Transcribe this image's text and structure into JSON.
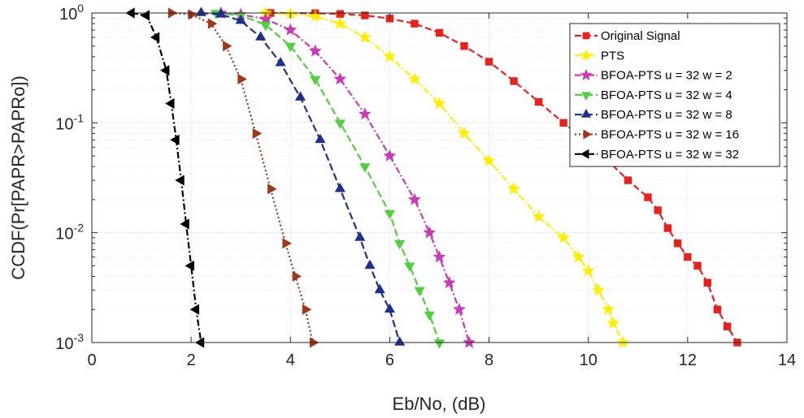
{
  "chart_data": {
    "type": "line",
    "title": "",
    "xlabel": "Eb/No, (dB)",
    "ylabel": "CCDF(Pr[PAPR>PAPRo])",
    "xlim": [
      0,
      14
    ],
    "ylim": [
      0.001,
      1
    ],
    "yscale": "log",
    "grid": true,
    "legend_position": "top-right",
    "x_ticks": [
      "0",
      "2",
      "4",
      "6",
      "8",
      "10",
      "12",
      "14"
    ],
    "y_ticks": [
      {
        "base": "10",
        "exp": "0"
      },
      {
        "base": "10",
        "exp": "-1"
      },
      {
        "base": "10",
        "exp": "-2"
      },
      {
        "base": "10",
        "exp": "-3"
      }
    ],
    "series": [
      {
        "name": "Original Signal",
        "color": "#e8211c",
        "marker": "square",
        "dash": "8,4",
        "x": [
          3.6,
          4.5,
          5.0,
          5.5,
          6.0,
          6.5,
          7.0,
          7.5,
          8.0,
          8.5,
          9.0,
          9.5,
          10.0,
          10.4,
          10.8,
          11.2,
          11.4,
          11.6,
          11.8,
          12.0,
          12.2,
          12.4,
          12.6,
          12.8,
          13.0
        ],
        "y": [
          1.0,
          0.995,
          0.98,
          0.95,
          0.89,
          0.8,
          0.66,
          0.5,
          0.36,
          0.24,
          0.155,
          0.1,
          0.066,
          0.045,
          0.03,
          0.021,
          0.016,
          0.011,
          0.008,
          0.006,
          0.005,
          0.0035,
          0.002,
          0.0014,
          0.001
        ]
      },
      {
        "name": "PTS",
        "color": "#ffee00",
        "marker": "star",
        "dash": "8,3,2,3",
        "x": [
          3.5,
          4.0,
          4.5,
          5.0,
          5.5,
          6.0,
          6.5,
          7.0,
          7.5,
          8.0,
          8.5,
          9.0,
          9.5,
          9.8,
          10.0,
          10.2,
          10.4,
          10.5,
          10.7
        ],
        "y": [
          1.0,
          0.98,
          0.93,
          0.8,
          0.6,
          0.4,
          0.25,
          0.15,
          0.08,
          0.045,
          0.025,
          0.014,
          0.009,
          0.006,
          0.0045,
          0.003,
          0.002,
          0.0015,
          0.001
        ]
      },
      {
        "name": "BFOA-PTS u = 32 w = 2",
        "color": "#c93cb5",
        "marker": "star",
        "dash": "8,3,2,3",
        "x": [
          2.6,
          3.0,
          3.5,
          4.0,
          4.5,
          5.0,
          5.5,
          6.0,
          6.5,
          6.8,
          7.0,
          7.2,
          7.4,
          7.6
        ],
        "y": [
          1.0,
          0.97,
          0.88,
          0.7,
          0.45,
          0.25,
          0.12,
          0.05,
          0.02,
          0.01,
          0.006,
          0.0035,
          0.002,
          0.001
        ]
      },
      {
        "name": "BFOA-PTS u = 32 w = 4",
        "color": "#4fd03c",
        "marker": "tri-down",
        "dash": "9,4",
        "x": [
          2.5,
          3.0,
          3.5,
          4.0,
          4.5,
          5.0,
          5.5,
          6.0,
          6.2,
          6.4,
          6.6,
          6.8,
          7.0
        ],
        "y": [
          1.0,
          0.95,
          0.78,
          0.5,
          0.25,
          0.1,
          0.04,
          0.015,
          0.008,
          0.005,
          0.003,
          0.0018,
          0.001
        ]
      },
      {
        "name": "BFOA-PTS u = 32 w = 8",
        "color": "#1f2f8f",
        "marker": "tri-up",
        "dash": "9,4",
        "x": [
          2.2,
          2.6,
          3.0,
          3.4,
          3.8,
          4.2,
          4.6,
          5.0,
          5.4,
          5.6,
          5.8,
          6.0,
          6.2
        ],
        "y": [
          1.0,
          0.97,
          0.85,
          0.6,
          0.35,
          0.17,
          0.07,
          0.025,
          0.009,
          0.005,
          0.003,
          0.002,
          0.001
        ]
      },
      {
        "name": "BFOA-PTS u = 32 w = 16",
        "color": "#a0361a",
        "marker": "tri-right",
        "dash": "2,3",
        "x": [
          1.6,
          2.0,
          2.4,
          2.7,
          3.0,
          3.3,
          3.6,
          3.9,
          4.1,
          4.3,
          4.45
        ],
        "y": [
          1.0,
          0.97,
          0.8,
          0.5,
          0.25,
          0.08,
          0.025,
          0.008,
          0.004,
          0.002,
          0.001
        ]
      },
      {
        "name": "BFOA-PTS u = 32 w = 32",
        "color": "#000000",
        "marker": "tri-left",
        "dash": "8,3,2,3",
        "x": [
          0.8,
          1.1,
          1.3,
          1.5,
          1.6,
          1.7,
          1.8,
          1.9,
          2.0,
          2.1,
          2.2
        ],
        "y": [
          1.0,
          0.95,
          0.6,
          0.3,
          0.15,
          0.07,
          0.03,
          0.012,
          0.005,
          0.002,
          0.001
        ]
      }
    ]
  }
}
